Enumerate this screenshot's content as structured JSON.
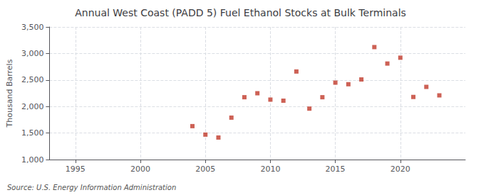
{
  "chart_data": {
    "type": "scatter",
    "title": "Annual West Coast (PADD 5) Fuel Ethanol Stocks at Bulk Terminals",
    "ylabel": "Thousand Barrels",
    "annotation": "Source: U.S. Energy Information Administration",
    "x": [
      2004,
      2005,
      2006,
      2007,
      2008,
      2009,
      2010,
      2011,
      2012,
      2013,
      2014,
      2015,
      2016,
      2017,
      2018,
      2019,
      2020,
      2021,
      2022,
      2023
    ],
    "values": [
      1630,
      1470,
      1415,
      1790,
      2175,
      2250,
      2130,
      2110,
      2660,
      1960,
      2175,
      2450,
      2420,
      2510,
      3120,
      2810,
      2920,
      2180,
      2370,
      2210
    ],
    "color": "#c0392b",
    "marker": "square",
    "xlim": [
      1993,
      2025
    ],
    "xticks": [
      1995,
      2000,
      2005,
      2010,
      2015,
      2020
    ],
    "ylim": [
      1000,
      3500
    ],
    "yticks": [
      {
        "value": 1000,
        "label": "1,000"
      },
      {
        "value": 1500,
        "label": "1,500"
      },
      {
        "value": 2000,
        "label": "2,000"
      },
      {
        "value": 2500,
        "label": "2,500"
      },
      {
        "value": 3000,
        "label": "3,000"
      },
      {
        "value": 3500,
        "label": "3,500"
      }
    ],
    "grid": true
  }
}
